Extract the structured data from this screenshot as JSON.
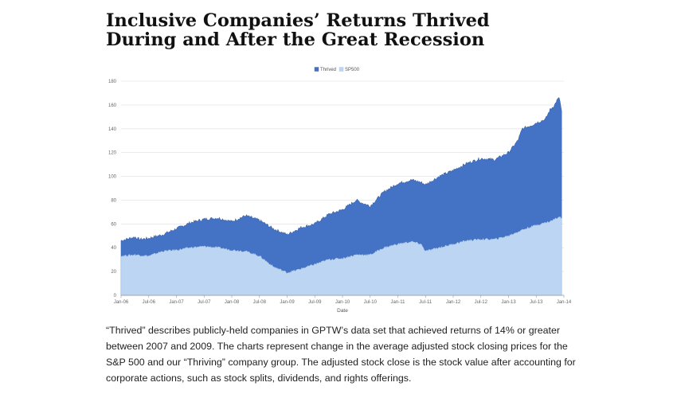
{
  "title_line1": "Inclusive Companies’ Returns Thrived",
  "title_line2": "During and After the Great Recession",
  "caption": "“Thrived” describes publicly-held companies in GPTW’s data set that achieved returns of 14% or greater between 2007 and 2009. The charts represent change in the average adjusted stock closing prices for the S&P 500 and our “Thriving” company group. The adjusted stock close is the stock value after accounting for corporate actions, such as stock splits, dividends, and rights offerings.",
  "colors": {
    "thrived": "#4472c4",
    "sp500": "#bcd5f2",
    "gridline": "#dddddd",
    "axis": "#999999"
  },
  "chart_data": {
    "type": "area",
    "xlabel": "Date",
    "ylabel": "",
    "ylim": [
      0,
      180
    ],
    "yticks": [
      0,
      20,
      40,
      60,
      80,
      100,
      120,
      140,
      160,
      180
    ],
    "xlim": [
      0,
      96
    ],
    "xticks": [
      {
        "pos": 0,
        "label": "Jan-06"
      },
      {
        "pos": 6,
        "label": "Jul-06"
      },
      {
        "pos": 12,
        "label": "Jan-07"
      },
      {
        "pos": 18,
        "label": "Jul-07"
      },
      {
        "pos": 24,
        "label": "Jan-08"
      },
      {
        "pos": 30,
        "label": "Jul-08"
      },
      {
        "pos": 36,
        "label": "Jan-09"
      },
      {
        "pos": 42,
        "label": "Jul-09"
      },
      {
        "pos": 48,
        "label": "Jan-10"
      },
      {
        "pos": 54,
        "label": "Jul-10"
      },
      {
        "pos": 60,
        "label": "Jan-11"
      },
      {
        "pos": 66,
        "label": "Jul-11"
      },
      {
        "pos": 72,
        "label": "Jan-12"
      },
      {
        "pos": 78,
        "label": "Jul-12"
      },
      {
        "pos": 84,
        "label": "Jan-13"
      },
      {
        "pos": 90,
        "label": "Jul-13"
      },
      {
        "pos": 96,
        "label": "Jan-14"
      }
    ],
    "legend_position": "top-center",
    "grid": true,
    "series": [
      {
        "name": "Thrived",
        "color": "#4472c4",
        "points": [
          [
            0,
            46
          ],
          [
            3,
            49
          ],
          [
            4,
            47
          ],
          [
            6,
            48
          ],
          [
            9,
            51
          ],
          [
            12,
            56
          ],
          [
            15,
            61
          ],
          [
            18,
            64
          ],
          [
            21,
            65
          ],
          [
            24,
            62
          ],
          [
            27,
            67
          ],
          [
            30,
            63
          ],
          [
            33,
            56
          ],
          [
            36,
            51
          ],
          [
            37,
            53
          ],
          [
            39,
            57
          ],
          [
            42,
            60
          ],
          [
            45,
            68
          ],
          [
            48,
            72
          ],
          [
            51,
            80
          ],
          [
            52,
            78
          ],
          [
            54,
            75
          ],
          [
            57,
            87
          ],
          [
            60,
            94
          ],
          [
            63,
            97
          ],
          [
            65,
            95
          ],
          [
            66,
            93
          ],
          [
            69,
            100
          ],
          [
            72,
            105
          ],
          [
            75,
            111
          ],
          [
            78,
            115
          ],
          [
            81,
            114
          ],
          [
            84,
            120
          ],
          [
            86,
            130
          ],
          [
            87,
            140
          ],
          [
            89,
            143
          ],
          [
            90,
            145
          ],
          [
            92,
            148
          ],
          [
            93,
            156
          ],
          [
            94,
            160
          ],
          [
            94.5,
            164
          ],
          [
            95,
            166
          ],
          [
            95.5,
            155
          ]
        ]
      },
      {
        "name": "SP500",
        "color": "#bcd5f2",
        "points": [
          [
            0,
            33
          ],
          [
            3,
            34
          ],
          [
            6,
            33
          ],
          [
            9,
            37
          ],
          [
            12,
            38
          ],
          [
            15,
            40
          ],
          [
            18,
            41
          ],
          [
            21,
            40
          ],
          [
            24,
            38
          ],
          [
            27,
            37
          ],
          [
            30,
            33
          ],
          [
            33,
            24
          ],
          [
            36,
            19
          ],
          [
            38,
            21
          ],
          [
            42,
            26
          ],
          [
            45,
            30
          ],
          [
            48,
            31
          ],
          [
            51,
            34
          ],
          [
            54,
            34
          ],
          [
            57,
            40
          ],
          [
            60,
            43
          ],
          [
            63,
            45
          ],
          [
            65,
            43
          ],
          [
            66,
            37
          ],
          [
            69,
            40
          ],
          [
            72,
            43
          ],
          [
            75,
            46
          ],
          [
            78,
            47
          ],
          [
            81,
            47
          ],
          [
            84,
            50
          ],
          [
            87,
            55
          ],
          [
            90,
            59
          ],
          [
            93,
            62
          ],
          [
            95,
            66
          ],
          [
            95.5,
            65
          ]
        ]
      }
    ]
  }
}
